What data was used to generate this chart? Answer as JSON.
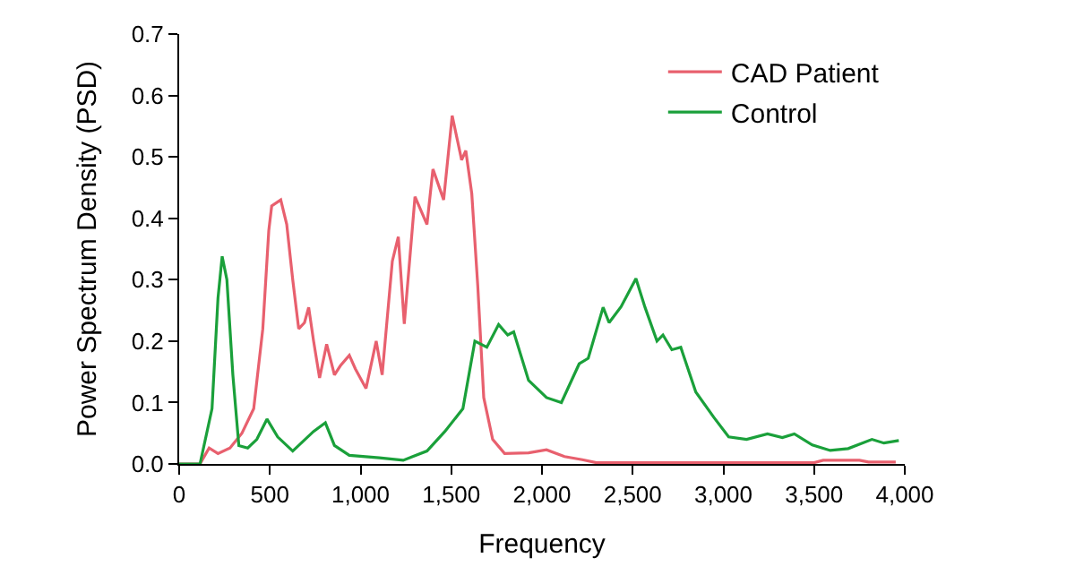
{
  "chart_data": {
    "type": "line",
    "xlabel": "Frequency",
    "ylabel": "Power Spectrum Density (PSD)",
    "xlim": [
      0,
      4000
    ],
    "ylim": [
      0,
      0.7
    ],
    "xticks": [
      0,
      500,
      {
        "value": 1000,
        "label": "1,000"
      },
      {
        "value": 1500,
        "label": "1,500"
      },
      {
        "value": 2000,
        "label": "2,000"
      },
      {
        "value": 2500,
        "label": "2,500"
      },
      {
        "value": 3000,
        "label": "3,000"
      },
      {
        "value": 3500,
        "label": "3,500"
      },
      {
        "value": 4000,
        "label": "4,000"
      }
    ],
    "yticks": [
      {
        "value": 0,
        "label": "0.0"
      },
      0.1,
      0.2,
      0.3,
      0.4,
      0.5,
      0.6,
      0.7
    ],
    "legend": "top right",
    "marker": "none",
    "line_style": "solid",
    "series": [
      {
        "name": "CAD Patient",
        "color": "#e8606e",
        "x": [
          0,
          115,
          165,
          214,
          280,
          346,
          411,
          461,
          494,
          510,
          560,
          593,
          626,
          659,
          691,
          714,
          741,
          774,
          813,
          856,
          889,
          938,
          971,
          1030,
          1086,
          1119,
          1175,
          1208,
          1241,
          1300,
          1366,
          1399,
          1458,
          1505,
          1557,
          1580,
          1613,
          1646,
          1679,
          1728,
          1794,
          1926,
          2025,
          2124,
          2222,
          2300,
          3500,
          3550,
          3750,
          3800,
          3950
        ],
        "values": [
          0,
          0,
          0.026,
          0.017,
          0.026,
          0.05,
          0.09,
          0.22,
          0.38,
          0.42,
          0.43,
          0.39,
          0.3,
          0.22,
          0.23,
          0.255,
          0.2,
          0.14,
          0.195,
          0.145,
          0.16,
          0.177,
          0.155,
          0.123,
          0.2,
          0.145,
          0.33,
          0.37,
          0.228,
          0.435,
          0.39,
          0.48,
          0.43,
          0.567,
          0.495,
          0.51,
          0.44,
          0.29,
          0.108,
          0.04,
          0.017,
          0.018,
          0.023,
          0.012,
          0.007,
          0.002,
          0.002,
          0.006,
          0.006,
          0.003,
          0.003
        ]
      },
      {
        "name": "Control",
        "color": "#1aa03a",
        "x": [
          0,
          115,
          181,
          214,
          237,
          263,
          296,
          329,
          378,
          428,
          484,
          543,
          626,
          741,
          806,
          856,
          938,
          1103,
          1235,
          1366,
          1465,
          1564,
          1630,
          1696,
          1761,
          1811,
          1844,
          1926,
          2025,
          2107,
          2205,
          2255,
          2337,
          2370,
          2436,
          2518,
          2568,
          2634,
          2667,
          2716,
          2765,
          2848,
          2947,
          3029,
          3128,
          3243,
          3325,
          3391,
          3490,
          3589,
          3688,
          3819,
          3885,
          3967
        ],
        "values": [
          0,
          0,
          0.09,
          0.27,
          0.338,
          0.3,
          0.145,
          0.03,
          0.026,
          0.04,
          0.073,
          0.044,
          0.021,
          0.053,
          0.067,
          0.03,
          0.014,
          0.01,
          0.006,
          0.021,
          0.053,
          0.09,
          0.2,
          0.19,
          0.227,
          0.21,
          0.215,
          0.136,
          0.108,
          0.1,
          0.163,
          0.172,
          0.255,
          0.23,
          0.256,
          0.302,
          0.255,
          0.2,
          0.21,
          0.186,
          0.19,
          0.117,
          0.076,
          0.044,
          0.04,
          0.049,
          0.043,
          0.049,
          0.031,
          0.022,
          0.025,
          0.04,
          0.034,
          0.038
        ]
      }
    ]
  }
}
